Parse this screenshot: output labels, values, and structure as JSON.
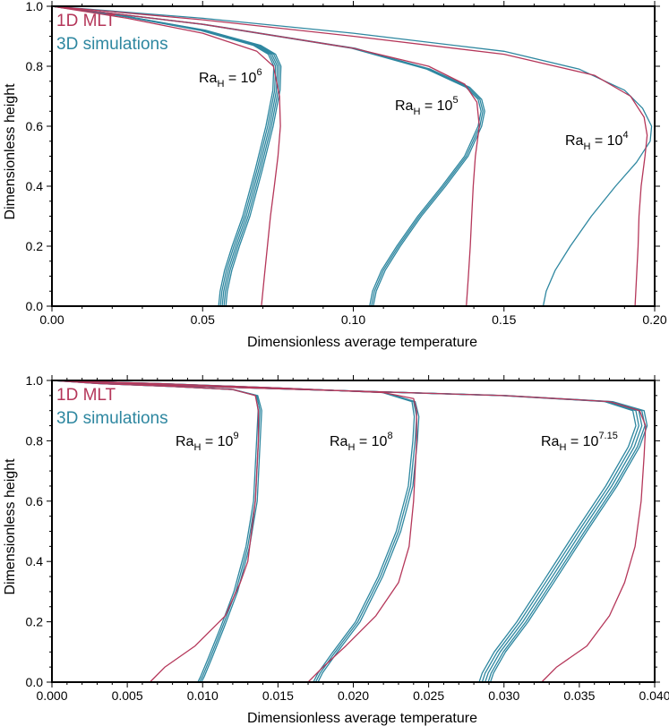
{
  "colors": {
    "mlt": "#b5375a",
    "sim": "#2e87a0"
  },
  "chart_data": [
    {
      "type": "line",
      "xlabel": "Dimensionless average temperature",
      "ylabel": "Dimensionless height",
      "xlim": [
        0,
        0.2
      ],
      "ylim": [
        0,
        1
      ],
      "xticks": [
        "0.00",
        "0.05",
        "0.10",
        "0.15",
        "0.20"
      ],
      "yticks": [
        "0.0",
        "0.2",
        "0.4",
        "0.6",
        "0.8",
        "1.0"
      ],
      "legend": {
        "placement": "top-left",
        "entries": [
          "1D MLT",
          "3D simulations"
        ]
      },
      "annotations": [
        {
          "base": "Ra",
          "sub": "H",
          "mid": " = 10",
          "sup": "6"
        },
        {
          "base": "Ra",
          "sub": "H",
          "mid": " = 10",
          "sup": "5"
        },
        {
          "base": "Ra",
          "sub": "H",
          "mid": " = 10",
          "sup": "4"
        }
      ],
      "series": [
        {
          "name": "1D MLT",
          "values": [
            [
              0.0695,
              0.0
            ],
            [
              0.0705,
              0.1
            ],
            [
              0.0715,
              0.2
            ],
            [
              0.0725,
              0.3
            ],
            [
              0.0738,
              0.4
            ],
            [
              0.075,
              0.5
            ],
            [
              0.0758,
              0.6
            ],
            [
              0.0755,
              0.7
            ],
            [
              0.0735,
              0.8
            ],
            [
              0.068,
              0.85
            ],
            [
              0.05,
              0.91
            ],
            [
              0.025,
              0.96
            ],
            [
              0.0,
              1.0
            ]
          ]
        },
        {
          "name": "1D MLT",
          "values": [
            [
              0.1375,
              0.0
            ],
            [
              0.1382,
              0.1
            ],
            [
              0.1388,
              0.2
            ],
            [
              0.1393,
              0.3
            ],
            [
              0.1398,
              0.4
            ],
            [
              0.1405,
              0.5
            ],
            [
              0.1418,
              0.6
            ],
            [
              0.141,
              0.68
            ],
            [
              0.137,
              0.74
            ],
            [
              0.125,
              0.8
            ],
            [
              0.1,
              0.86
            ],
            [
              0.05,
              0.94
            ],
            [
              0.0,
              1.0
            ]
          ]
        },
        {
          "name": "1D MLT",
          "values": [
            [
              0.1935,
              0.0
            ],
            [
              0.194,
              0.1
            ],
            [
              0.1945,
              0.2
            ],
            [
              0.1948,
              0.3
            ],
            [
              0.1955,
              0.4
            ],
            [
              0.1968,
              0.5
            ],
            [
              0.1975,
              0.57
            ],
            [
              0.1965,
              0.63
            ],
            [
              0.192,
              0.7
            ],
            [
              0.18,
              0.77
            ],
            [
              0.15,
              0.84
            ],
            [
              0.1,
              0.9
            ],
            [
              0.05,
              0.955
            ],
            [
              0.0,
              1.0
            ]
          ]
        },
        {
          "name": "3D simulations",
          "values": [
            [
              0.0565,
              0.0
            ],
            [
              0.057,
              0.05
            ],
            [
              0.0585,
              0.12
            ],
            [
              0.061,
              0.2
            ],
            [
              0.0645,
              0.3
            ],
            [
              0.0685,
              0.45
            ],
            [
              0.0722,
              0.6
            ],
            [
              0.0745,
              0.72
            ],
            [
              0.0748,
              0.8
            ],
            [
              0.073,
              0.84
            ],
            [
              0.068,
              0.87
            ],
            [
              0.05,
              0.92
            ],
            [
              0.025,
              0.965
            ],
            [
              0.0,
              1.0
            ]
          ]
        },
        {
          "name": "3D simulations",
          "values": [
            [
              0.106,
              0.0
            ],
            [
              0.107,
              0.05
            ],
            [
              0.11,
              0.12
            ],
            [
              0.115,
              0.2
            ],
            [
              0.122,
              0.3
            ],
            [
              0.13,
              0.4
            ],
            [
              0.1375,
              0.5
            ],
            [
              0.142,
              0.6
            ],
            [
              0.143,
              0.65
            ],
            [
              0.142,
              0.69
            ],
            [
              0.138,
              0.73
            ],
            [
              0.125,
              0.79
            ],
            [
              0.1,
              0.86
            ],
            [
              0.05,
              0.94
            ],
            [
              0.0,
              1.0
            ]
          ]
        },
        {
          "name": "3D simulations",
          "values": [
            [
              0.163,
              0.0
            ],
            [
              0.164,
              0.05
            ],
            [
              0.167,
              0.12
            ],
            [
              0.172,
              0.2
            ],
            [
              0.179,
              0.3
            ],
            [
              0.187,
              0.4
            ],
            [
              0.194,
              0.48
            ],
            [
              0.1985,
              0.55
            ],
            [
              0.199,
              0.6
            ],
            [
              0.196,
              0.66
            ],
            [
              0.19,
              0.72
            ],
            [
              0.175,
              0.79
            ],
            [
              0.15,
              0.85
            ],
            [
              0.1,
              0.91
            ],
            [
              0.05,
              0.96
            ],
            [
              0.0,
              1.0
            ]
          ]
        }
      ]
    },
    {
      "type": "line",
      "xlabel": "Dimensionless average temperature",
      "ylabel": "Dimensionless height",
      "xlim": [
        0,
        0.04
      ],
      "ylim": [
        0,
        1
      ],
      "xticks": [
        "0.000",
        "0.005",
        "0.010",
        "0.015",
        "0.020",
        "0.025",
        "0.030",
        "0.035",
        "0.040"
      ],
      "yticks": [
        "0.0",
        "0.2",
        "0.4",
        "0.6",
        "0.8",
        "1.0"
      ],
      "legend": {
        "placement": "top-left",
        "entries": [
          "1D MLT",
          "3D simulations"
        ]
      },
      "annotations": [
        {
          "base": "Ra",
          "sub": "H",
          "mid": " = 10",
          "sup": "9"
        },
        {
          "base": "Ra",
          "sub": "H",
          "mid": " = 10",
          "sup": "8"
        },
        {
          "base": "Ra",
          "sub": "H",
          "mid": " = 10",
          "sup": "7.15"
        }
      ],
      "series": [
        {
          "name": "1D MLT",
          "values": [
            [
              0.0065,
              0.0
            ],
            [
              0.0075,
              0.05
            ],
            [
              0.0095,
              0.12
            ],
            [
              0.0115,
              0.22
            ],
            [
              0.0125,
              0.33
            ],
            [
              0.013,
              0.4
            ],
            [
              0.0135,
              0.6
            ],
            [
              0.0137,
              0.8
            ],
            [
              0.0137,
              0.9
            ],
            [
              0.0135,
              0.95
            ],
            [
              0.012,
              0.97
            ],
            [
              0.008,
              0.98
            ],
            [
              0.003,
              0.99
            ],
            [
              0.0,
              1.0
            ]
          ]
        },
        {
          "name": "1D MLT",
          "values": [
            [
              0.017,
              0.0
            ],
            [
              0.018,
              0.05
            ],
            [
              0.0195,
              0.12
            ],
            [
              0.0215,
              0.22
            ],
            [
              0.023,
              0.33
            ],
            [
              0.0237,
              0.45
            ],
            [
              0.024,
              0.6
            ],
            [
              0.0242,
              0.8
            ],
            [
              0.0242,
              0.9
            ],
            [
              0.024,
              0.94
            ],
            [
              0.022,
              0.96
            ],
            [
              0.015,
              0.975
            ],
            [
              0.007,
              0.99
            ],
            [
              0.0,
              1.0
            ]
          ]
        },
        {
          "name": "1D MLT",
          "values": [
            [
              0.0325,
              0.0
            ],
            [
              0.0335,
              0.05
            ],
            [
              0.0355,
              0.12
            ],
            [
              0.037,
              0.22
            ],
            [
              0.038,
              0.33
            ],
            [
              0.0387,
              0.45
            ],
            [
              0.0391,
              0.6
            ],
            [
              0.0393,
              0.75
            ],
            [
              0.0394,
              0.85
            ],
            [
              0.039,
              0.9
            ],
            [
              0.037,
              0.93
            ],
            [
              0.03,
              0.95
            ],
            [
              0.02,
              0.965
            ],
            [
              0.01,
              0.98
            ],
            [
              0.0,
              1.0
            ]
          ]
        },
        {
          "name": "3D simulations",
          "values": [
            [
              0.0098,
              0.0
            ],
            [
              0.01,
              0.02
            ],
            [
              0.0105,
              0.08
            ],
            [
              0.0113,
              0.18
            ],
            [
              0.0122,
              0.3
            ],
            [
              0.013,
              0.45
            ],
            [
              0.0135,
              0.6
            ],
            [
              0.0137,
              0.8
            ],
            [
              0.0138,
              0.9
            ],
            [
              0.0136,
              0.95
            ],
            [
              0.012,
              0.97
            ],
            [
              0.008,
              0.98
            ],
            [
              0.003,
              0.99
            ],
            [
              0.0,
              1.0
            ]
          ]
        },
        {
          "name": "3D simulations",
          "values": [
            [
              0.0175,
              0.0
            ],
            [
              0.0178,
              0.03
            ],
            [
              0.0188,
              0.1
            ],
            [
              0.0203,
              0.2
            ],
            [
              0.0218,
              0.35
            ],
            [
              0.023,
              0.5
            ],
            [
              0.0238,
              0.65
            ],
            [
              0.0241,
              0.8
            ],
            [
              0.0242,
              0.88
            ],
            [
              0.024,
              0.93
            ],
            [
              0.022,
              0.96
            ],
            [
              0.015,
              0.975
            ],
            [
              0.007,
              0.99
            ],
            [
              0.0,
              1.0
            ]
          ]
        },
        {
          "name": "3D simulations",
          "values": [
            [
              0.0288,
              0.0
            ],
            [
              0.029,
              0.03
            ],
            [
              0.0298,
              0.1
            ],
            [
              0.0313,
              0.2
            ],
            [
              0.033,
              0.33
            ],
            [
              0.0352,
              0.5
            ],
            [
              0.0372,
              0.65
            ],
            [
              0.0387,
              0.78
            ],
            [
              0.0392,
              0.85
            ],
            [
              0.039,
              0.9
            ],
            [
              0.037,
              0.93
            ],
            [
              0.03,
              0.95
            ],
            [
              0.02,
              0.965
            ],
            [
              0.01,
              0.98
            ],
            [
              0.0,
              1.0
            ]
          ]
        }
      ]
    }
  ]
}
